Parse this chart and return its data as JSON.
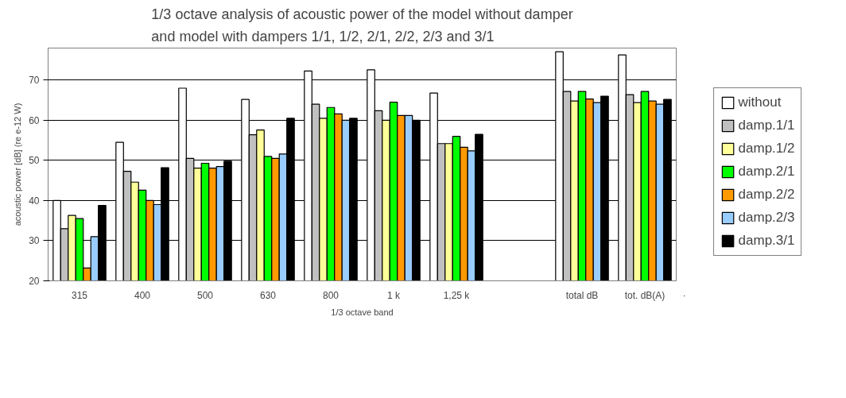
{
  "chart_data": {
    "type": "bar",
    "title": "1/3 octave analysis of acoustic power of the model without damper\nand model with dampers  1/1, 1/2, 2/1, 2/2, 2/3 and 3/1",
    "xlabel": "1/3 octave band",
    "ylabel": "acoustic power [dB] (re e-12 W)",
    "categories": [
      "315",
      "400",
      "500",
      "630",
      "800",
      "1 k",
      "1,25 k",
      null,
      "total dB",
      "tot. dB(A)"
    ],
    "ylim": [
      20,
      78
    ],
    "yticks": [
      20,
      30,
      40,
      50,
      60,
      70
    ],
    "grid": "y",
    "legend": "right",
    "series": [
      {
        "name": "without",
        "color": "#ffffff",
        "values": [
          40,
          54.5,
          68,
          65.2,
          72.3,
          72.6,
          66.8,
          null,
          77.1,
          76.3
        ]
      },
      {
        "name": "damp.1/1",
        "color": "#c0c0c0",
        "values": [
          33,
          47.3,
          50.5,
          56.4,
          64,
          62.4,
          54.2,
          null,
          67.2,
          66.4
        ]
      },
      {
        "name": "damp.1/2",
        "color": "#ffff99",
        "values": [
          36.3,
          44.6,
          48.1,
          57.6,
          60.5,
          60,
          54.2,
          null,
          64.8,
          64.4
        ]
      },
      {
        "name": "damp.2/1",
        "color": "#00ff00",
        "values": [
          35.5,
          42.6,
          49.3,
          51,
          63.2,
          64.5,
          56,
          null,
          67.2,
          67.2
        ]
      },
      {
        "name": "damp.2/2",
        "color": "#ff9900",
        "values": [
          23.2,
          40,
          48.1,
          50.5,
          61.6,
          61.2,
          53.3,
          null,
          65.3,
          64.8
        ]
      },
      {
        "name": "damp.2/3",
        "color": "#99ccff",
        "values": [
          31,
          39,
          48.5,
          51.6,
          60,
          61.2,
          52.4,
          null,
          64.4,
          64
        ]
      },
      {
        "name": "damp.3/1",
        "color": "#000000",
        "values": [
          38.8,
          48.2,
          49.8,
          60.5,
          60.5,
          60,
          56.5,
          null,
          66,
          65.2
        ]
      }
    ]
  }
}
